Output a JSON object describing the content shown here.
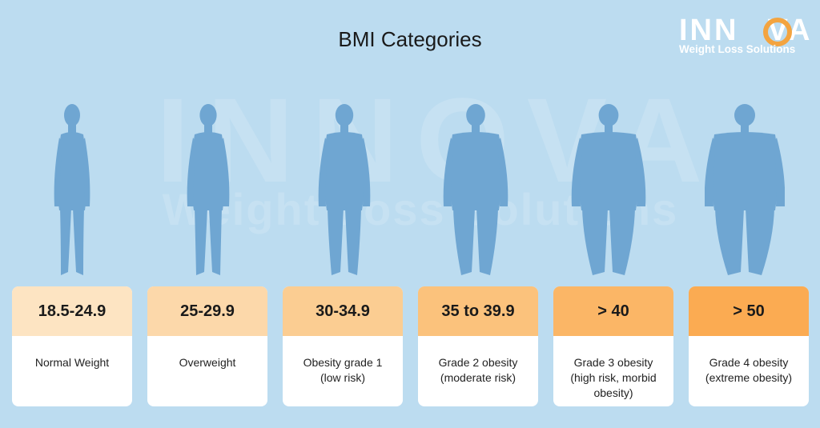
{
  "title": "BMI Categories",
  "logo": {
    "word_a": "INN",
    "word_b": "VA",
    "subtitle": "Weight Loss Solutions"
  },
  "watermark": {
    "line1": "INNOVA",
    "line2": "Weight Loss Solutions"
  },
  "colors": {
    "background": "#bcdcf0",
    "figure": "#6fa6d2",
    "accent": "#f3a440"
  },
  "categories": [
    {
      "range": "18.5-24.9",
      "label": "Normal Weight",
      "head_color": "#fde4c2"
    },
    {
      "range": "25-29.9",
      "label": "Overweight",
      "head_color": "#fcd8aa"
    },
    {
      "range": "30-34.9",
      "label": "Obesity grade 1\n(low risk)",
      "head_color": "#fbcd92"
    },
    {
      "range": "35 to 39.9",
      "label": "Grade 2 obesity\n(moderate risk)",
      "head_color": "#fbc27c"
    },
    {
      "range": "> 40",
      "label": "Grade 3 obesity\n(high risk, morbid\nobesity)",
      "head_color": "#fbb666"
    },
    {
      "range": "> 50",
      "label": "Grade 4 obesity\n(extreme obesity)",
      "head_color": "#fbab52"
    }
  ]
}
